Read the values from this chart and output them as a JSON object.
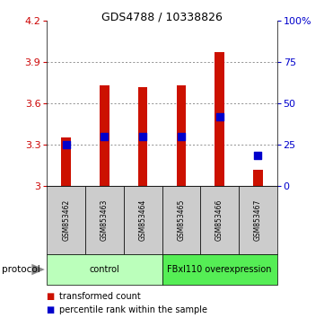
{
  "title": "GDS4788 / 10338826",
  "samples": [
    "GSM853462",
    "GSM853463",
    "GSM853464",
    "GSM853465",
    "GSM853466",
    "GSM853467"
  ],
  "bar_bottom": [
    3.0,
    3.0,
    3.0,
    3.0,
    3.0,
    3.0
  ],
  "bar_top": [
    3.35,
    3.73,
    3.72,
    3.73,
    3.97,
    3.12
  ],
  "blue_dot_y": [
    3.3,
    3.36,
    3.36,
    3.36,
    3.5,
    3.22
  ],
  "ylim": [
    3.0,
    4.2
  ],
  "yticks_left": [
    3.0,
    3.3,
    3.6,
    3.9,
    4.2
  ],
  "yticks_right": [
    0,
    25,
    50,
    75,
    100
  ],
  "bar_color": "#cc1100",
  "dot_color": "#0000cc",
  "tick_label_color_left": "#cc0000",
  "tick_label_color_right": "#0000cc",
  "group_labels": [
    "control",
    "FBxl110 overexpression"
  ],
  "group_counts": [
    3,
    3
  ],
  "group_colors": [
    "#bbffbb",
    "#55ee55"
  ],
  "sample_bg": "#cccccc",
  "protocol_label": "protocol",
  "legend_bar_label": "transformed count",
  "legend_dot_label": "percentile rank within the sample",
  "bg_color": "#ffffff"
}
